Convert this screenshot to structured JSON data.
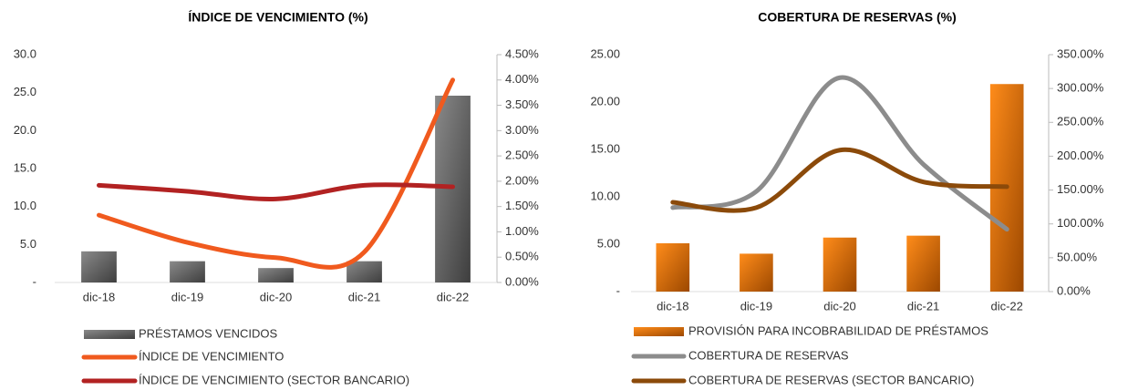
{
  "chart_data": [
    {
      "type": "bar",
      "title": "ÍNDICE DE VENCIMIENTO (%)",
      "categories": [
        "dic-18",
        "dic-19",
        "dic-20",
        "dic-21",
        "dic-22"
      ],
      "series": [
        {
          "name": "PRÉSTAMOS VENCIDOS",
          "type": "bar",
          "color": "#6e6e6e",
          "values": [
            4.1,
            2.8,
            1.9,
            2.8,
            24.6
          ]
        },
        {
          "name": "ÍNDICE DE VENCIMIENTO",
          "type": "line",
          "axis": "y2",
          "color": "#f05a1e",
          "values": [
            1.33,
            0.79,
            0.49,
            0.6,
            4.0
          ]
        },
        {
          "name": "ÍNDICE DE VENCIMIENTO (SECTOR BANCARIO)",
          "type": "line",
          "axis": "y2",
          "color": "#b22222",
          "values": [
            1.92,
            1.8,
            1.65,
            1.92,
            1.89
          ]
        }
      ],
      "ylim": [
        0,
        30
      ],
      "yticks": [
        {
          "value": 0,
          "label": "-"
        },
        {
          "value": 5,
          "label": "5.0"
        },
        {
          "value": 10,
          "label": "10.0"
        },
        {
          "value": 15,
          "label": "15.0"
        },
        {
          "value": 20,
          "label": "20.0"
        },
        {
          "value": 25,
          "label": "25.0"
        },
        {
          "value": 30,
          "label": "30.0"
        }
      ],
      "y2lim": [
        0,
        4.5
      ],
      "y2ticks": [
        {
          "value": 0,
          "label": "0.00%"
        },
        {
          "value": 0.5,
          "label": "0.50%"
        },
        {
          "value": 1,
          "label": "1.00%"
        },
        {
          "value": 1.5,
          "label": "1.50%"
        },
        {
          "value": 2,
          "label": "2.00%"
        },
        {
          "value": 2.5,
          "label": "2.50%"
        },
        {
          "value": 3,
          "label": "3.00%"
        },
        {
          "value": 3.5,
          "label": "3.50%"
        },
        {
          "value": 4,
          "label": "4.00%"
        },
        {
          "value": 4.5,
          "label": "4.50%"
        }
      ]
    },
    {
      "type": "bar",
      "title": "COBERTURA DE RESERVAS (%)",
      "categories": [
        "dic-18",
        "dic-19",
        "dic-20",
        "dic-21",
        "dic-22"
      ],
      "series": [
        {
          "name": "PROVISIÓN PARA INCOBRABILIDAD DE PRÉSTAMOS",
          "type": "bar",
          "color": "#e8760f",
          "values": [
            5.1,
            4.0,
            5.7,
            5.9,
            21.9
          ]
        },
        {
          "name": "COBERTURA DE RESERVAS",
          "type": "line",
          "axis": "y2",
          "color": "#8c8c8c",
          "values": [
            124,
            148,
            316,
            188,
            92
          ]
        },
        {
          "name": "COBERTURA DE RESERVAS (SECTOR BANCARIO)",
          "type": "line",
          "axis": "y2",
          "color": "#8b4a0a",
          "values": [
            132,
            124,
            209,
            162,
            155
          ]
        }
      ],
      "ylim": [
        0,
        25
      ],
      "yticks": [
        {
          "value": 0,
          "label": "-"
        },
        {
          "value": 5,
          "label": "5.00"
        },
        {
          "value": 10,
          "label": "10.00"
        },
        {
          "value": 15,
          "label": "15.00"
        },
        {
          "value": 20,
          "label": "20.00"
        },
        {
          "value": 25,
          "label": "25.00"
        }
      ],
      "y2lim": [
        0,
        350
      ],
      "y2ticks": [
        {
          "value": 0,
          "label": "0.00%"
        },
        {
          "value": 50,
          "label": "50.00%"
        },
        {
          "value": 100,
          "label": "100.00%"
        },
        {
          "value": 150,
          "label": "150.00%"
        },
        {
          "value": 200,
          "label": "200.00%"
        },
        {
          "value": 250,
          "label": "250.00%"
        },
        {
          "value": 300,
          "label": "300.00%"
        },
        {
          "value": 350,
          "label": "350.00%"
        }
      ]
    }
  ]
}
